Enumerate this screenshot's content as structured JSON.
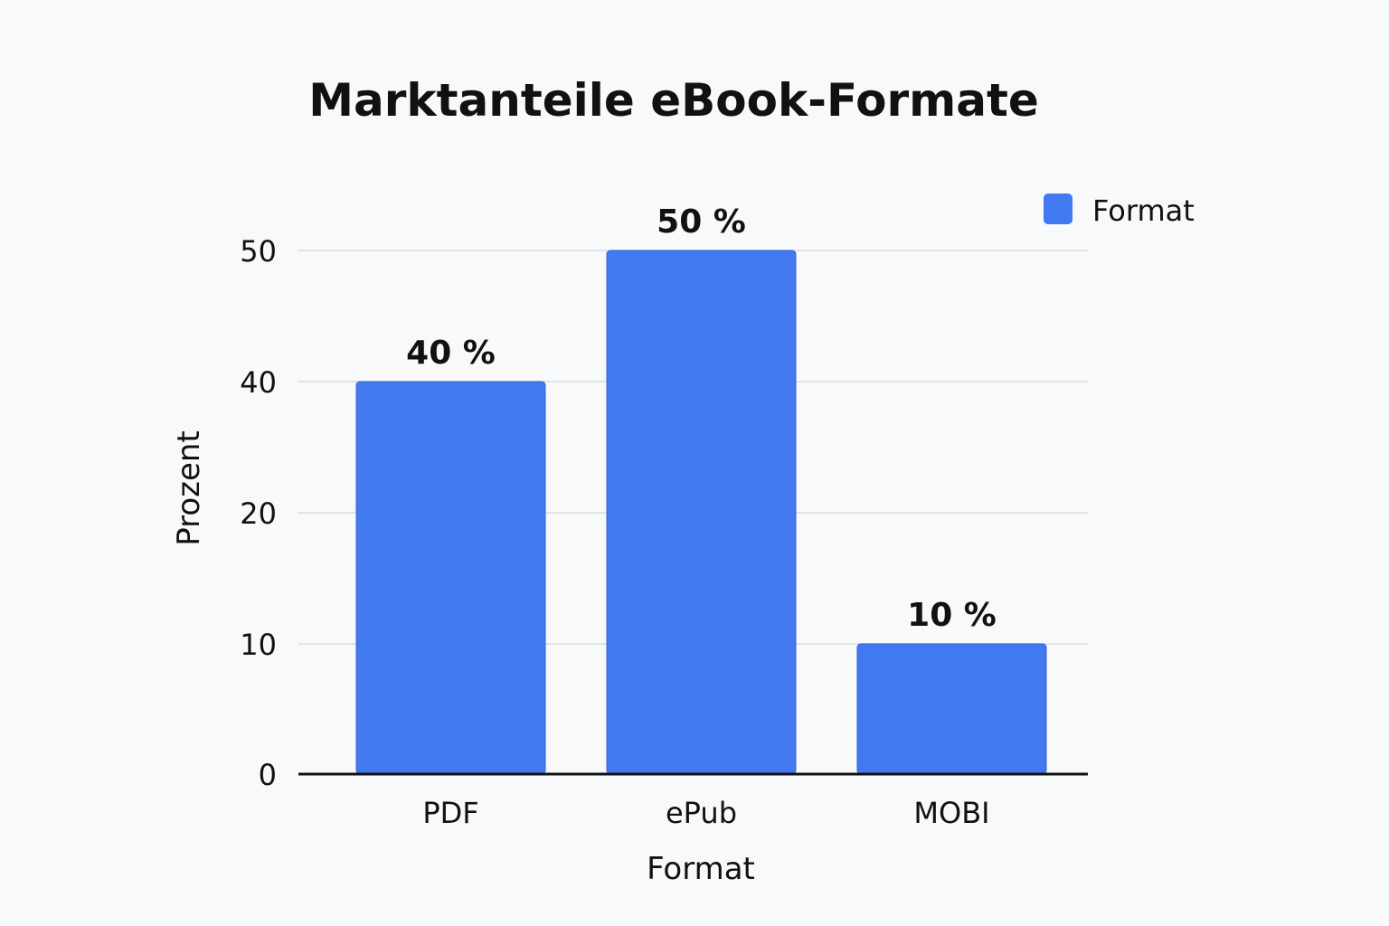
{
  "chart_data": {
    "type": "bar",
    "title": "Marktanteile eBook-Formate",
    "xlabel": "Format",
    "ylabel": "Prozent",
    "categories": [
      "PDF",
      "ePub",
      "MOBI"
    ],
    "series": [
      {
        "name": "Format",
        "values": [
          40,
          50,
          10
        ],
        "data_labels": [
          "40 %",
          "50 %",
          "10 %"
        ],
        "color": "#4278f0"
      }
    ],
    "y_ticks": [
      0,
      10,
      20,
      40,
      50
    ],
    "y_tick_labels": [
      "0",
      "10",
      "20",
      "40",
      "50"
    ],
    "grid": true,
    "legend": "top-right"
  }
}
